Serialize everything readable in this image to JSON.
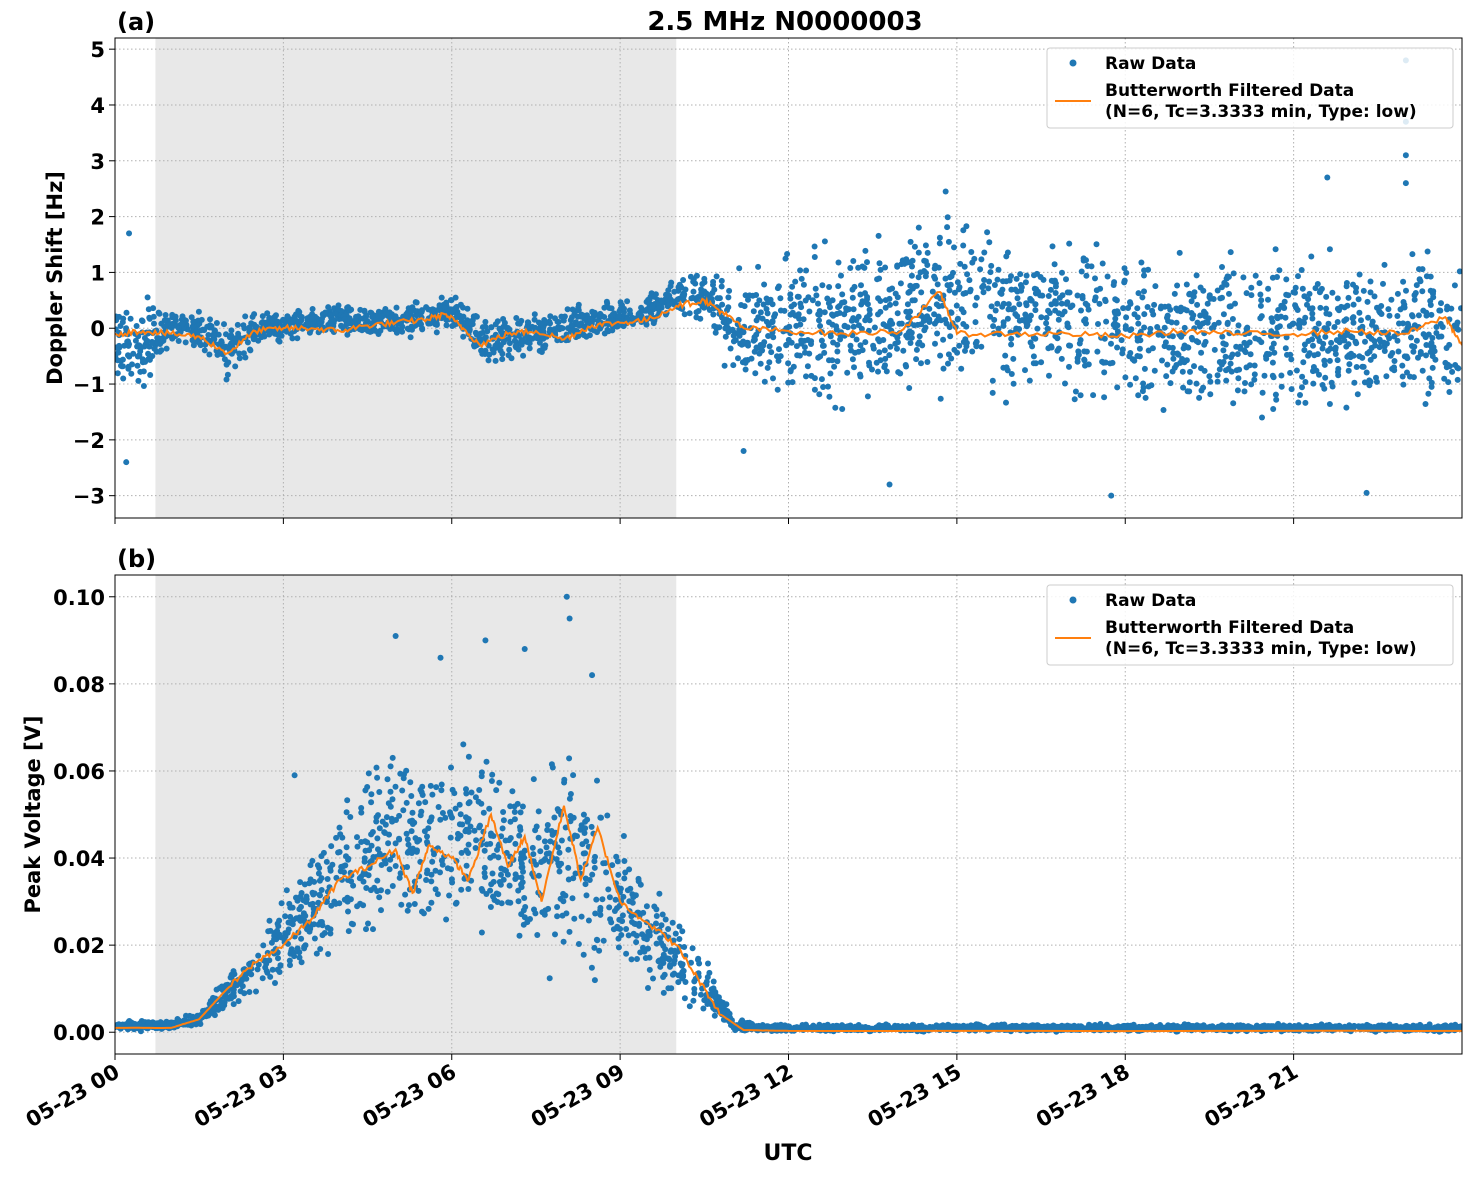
{
  "figure": {
    "title": "2.5 MHz N0000003",
    "xlabel": "UTC",
    "x_tick_labels": [
      "05-23 00",
      "05-23 03",
      "05-23 06",
      "05-23 09",
      "05-23 12",
      "05-23 15",
      "05-23 18",
      "05-23 21"
    ]
  },
  "colors": {
    "raw": "#1f77b4",
    "filtered": "#ff7f0e",
    "shade": "#e8e8e8",
    "grid": "#b0b0b0"
  },
  "chart_data": [
    {
      "type": "scatter",
      "panel_label": "(a)",
      "title": "2.5 MHz N0000003",
      "xlabel": "",
      "ylabel": "Doppler Shift [Hz]",
      "x_unit": "hours UTC on 05-23",
      "xlim": [
        0,
        24
      ],
      "ylim": [
        -3.4,
        5.2
      ],
      "y_ticks": [
        -3,
        -2,
        -1,
        0,
        1,
        2,
        3,
        4,
        5
      ],
      "y_tick_labels": [
        "−3",
        "−2",
        "−1",
        "0",
        "1",
        "2",
        "3",
        "4",
        "5"
      ],
      "grid": true,
      "legend_position": "top-right",
      "shaded_x_range": [
        0.72,
        10.0
      ],
      "series": [
        {
          "name": "Raw Data",
          "style": "points",
          "envelope": [
            {
              "x": 0.0,
              "lo": -1.2,
              "hi": 0.7
            },
            {
              "x": 0.5,
              "lo": -1.4,
              "hi": 0.8
            },
            {
              "x": 1.0,
              "lo": -0.5,
              "hi": 0.5
            },
            {
              "x": 1.5,
              "lo": -0.6,
              "hi": 0.5
            },
            {
              "x": 2.0,
              "lo": -1.1,
              "hi": 0.2
            },
            {
              "x": 2.5,
              "lo": -0.4,
              "hi": 0.4
            },
            {
              "x": 3.0,
              "lo": -0.3,
              "hi": 0.4
            },
            {
              "x": 4.0,
              "lo": -0.2,
              "hi": 0.5
            },
            {
              "x": 5.0,
              "lo": -0.3,
              "hi": 0.5
            },
            {
              "x": 6.0,
              "lo": -0.1,
              "hi": 0.7
            },
            {
              "x": 6.5,
              "lo": -0.8,
              "hi": 0.3
            },
            {
              "x": 7.5,
              "lo": -0.6,
              "hi": 0.4
            },
            {
              "x": 8.5,
              "lo": -0.3,
              "hi": 0.5
            },
            {
              "x": 9.5,
              "lo": -0.1,
              "hi": 0.7
            },
            {
              "x": 10.0,
              "lo": 0.1,
              "hi": 1.0
            },
            {
              "x": 10.5,
              "lo": 0.0,
              "hi": 1.2
            },
            {
              "x": 11.0,
              "lo": -1.2,
              "hi": 1.2
            },
            {
              "x": 12.0,
              "lo": -1.8,
              "hi": 1.6
            },
            {
              "x": 14.8,
              "lo": -1.5,
              "hi": 2.4
            },
            {
              "x": 18.0,
              "lo": -1.8,
              "hi": 1.8
            },
            {
              "x": 24.0,
              "lo": -1.9,
              "hi": 1.7
            }
          ],
          "outliers": [
            {
              "x": 0.25,
              "y": 1.7
            },
            {
              "x": 0.2,
              "y": -2.4
            },
            {
              "x": 11.2,
              "y": -2.2
            },
            {
              "x": 13.8,
              "y": -2.8
            },
            {
              "x": 14.8,
              "y": 2.45
            },
            {
              "x": 17.75,
              "y": -3.0
            },
            {
              "x": 21.6,
              "y": 2.7
            },
            {
              "x": 22.3,
              "y": -2.95
            },
            {
              "x": 23.0,
              "y": 4.8
            },
            {
              "x": 23.0,
              "y": 3.7
            },
            {
              "x": 23.0,
              "y": 3.1
            },
            {
              "x": 23.0,
              "y": 2.6
            }
          ]
        },
        {
          "name": "Butterworth Filtered Data\n(N=6, Tc=3.3333 min, Type: low)",
          "style": "line",
          "points": [
            {
              "x": 0.0,
              "y": -0.1
            },
            {
              "x": 0.5,
              "y": -0.05
            },
            {
              "x": 1.0,
              "y": -0.1
            },
            {
              "x": 1.5,
              "y": -0.15
            },
            {
              "x": 2.0,
              "y": -0.45
            },
            {
              "x": 2.5,
              "y": -0.05
            },
            {
              "x": 3.0,
              "y": 0.0
            },
            {
              "x": 3.5,
              "y": 0.0
            },
            {
              "x": 4.0,
              "y": -0.05
            },
            {
              "x": 4.5,
              "y": 0.05
            },
            {
              "x": 5.0,
              "y": 0.1
            },
            {
              "x": 5.5,
              "y": 0.15
            },
            {
              "x": 5.9,
              "y": 0.25
            },
            {
              "x": 6.2,
              "y": 0.0
            },
            {
              "x": 6.5,
              "y": -0.3
            },
            {
              "x": 7.0,
              "y": -0.1
            },
            {
              "x": 7.5,
              "y": -0.05
            },
            {
              "x": 8.0,
              "y": -0.2
            },
            {
              "x": 8.5,
              "y": 0.05
            },
            {
              "x": 9.0,
              "y": 0.1
            },
            {
              "x": 9.5,
              "y": 0.15
            },
            {
              "x": 10.0,
              "y": 0.4
            },
            {
              "x": 10.5,
              "y": 0.5
            },
            {
              "x": 10.8,
              "y": 0.3
            },
            {
              "x": 11.2,
              "y": 0.0
            },
            {
              "x": 12.0,
              "y": -0.05
            },
            {
              "x": 13.0,
              "y": -0.1
            },
            {
              "x": 14.0,
              "y": -0.05
            },
            {
              "x": 14.7,
              "y": 0.65
            },
            {
              "x": 15.0,
              "y": -0.1
            },
            {
              "x": 16.0,
              "y": -0.1
            },
            {
              "x": 17.0,
              "y": -0.1
            },
            {
              "x": 18.0,
              "y": -0.15
            },
            {
              "x": 19.0,
              "y": -0.05
            },
            {
              "x": 20.0,
              "y": -0.1
            },
            {
              "x": 21.0,
              "y": -0.1
            },
            {
              "x": 22.0,
              "y": -0.05
            },
            {
              "x": 23.0,
              "y": -0.1
            },
            {
              "x": 23.7,
              "y": 0.2
            },
            {
              "x": 24.0,
              "y": -0.3
            }
          ]
        }
      ]
    },
    {
      "type": "scatter",
      "panel_label": "(b)",
      "title": "",
      "xlabel": "UTC",
      "ylabel": "Peak Voltage [V]",
      "x_unit": "hours UTC on 05-23",
      "xlim": [
        0,
        24
      ],
      "ylim": [
        -0.005,
        0.105
      ],
      "y_ticks": [
        0.0,
        0.02,
        0.04,
        0.06,
        0.08,
        0.1
      ],
      "y_tick_labels": [
        "0.00",
        "0.02",
        "0.04",
        "0.06",
        "0.08",
        "0.10"
      ],
      "grid": true,
      "legend_position": "top-right",
      "shaded_x_range": [
        0.72,
        10.0
      ],
      "series": [
        {
          "name": "Raw Data",
          "style": "points",
          "envelope": [
            {
              "x": 0.0,
              "lo": 0.0,
              "hi": 0.003
            },
            {
              "x": 1.0,
              "lo": 0.0,
              "hi": 0.003
            },
            {
              "x": 1.5,
              "lo": 0.001,
              "hi": 0.005
            },
            {
              "x": 2.0,
              "lo": 0.003,
              "hi": 0.015
            },
            {
              "x": 2.5,
              "lo": 0.006,
              "hi": 0.025
            },
            {
              "x": 3.0,
              "lo": 0.008,
              "hi": 0.035
            },
            {
              "x": 3.5,
              "lo": 0.012,
              "hi": 0.045
            },
            {
              "x": 4.0,
              "lo": 0.015,
              "hi": 0.055
            },
            {
              "x": 4.5,
              "lo": 0.018,
              "hi": 0.065
            },
            {
              "x": 5.0,
              "lo": 0.018,
              "hi": 0.07
            },
            {
              "x": 6.0,
              "lo": 0.02,
              "hi": 0.07
            },
            {
              "x": 6.5,
              "lo": 0.018,
              "hi": 0.075
            },
            {
              "x": 7.0,
              "lo": 0.015,
              "hi": 0.07
            },
            {
              "x": 7.5,
              "lo": 0.012,
              "hi": 0.06
            },
            {
              "x": 8.0,
              "lo": 0.01,
              "hi": 0.075
            },
            {
              "x": 8.5,
              "lo": 0.01,
              "hi": 0.065
            },
            {
              "x": 9.0,
              "lo": 0.008,
              "hi": 0.05
            },
            {
              "x": 9.5,
              "lo": 0.006,
              "hi": 0.04
            },
            {
              "x": 10.0,
              "lo": 0.004,
              "hi": 0.03
            },
            {
              "x": 10.5,
              "lo": 0.002,
              "hi": 0.02
            },
            {
              "x": 11.0,
              "lo": 0.0,
              "hi": 0.004
            },
            {
              "x": 11.5,
              "lo": 0.0,
              "hi": 0.002
            },
            {
              "x": 24.0,
              "lo": 0.0,
              "hi": 0.002
            }
          ],
          "outliers": [
            {
              "x": 3.2,
              "y": 0.059
            },
            {
              "x": 5.0,
              "y": 0.091
            },
            {
              "x": 5.8,
              "y": 0.086
            },
            {
              "x": 6.6,
              "y": 0.09
            },
            {
              "x": 7.3,
              "y": 0.088
            },
            {
              "x": 8.05,
              "y": 0.1
            },
            {
              "x": 8.1,
              "y": 0.095
            },
            {
              "x": 8.5,
              "y": 0.082
            }
          ]
        },
        {
          "name": "Butterworth Filtered Data\n(N=6, Tc=3.3333 min, Type: low)",
          "style": "line",
          "points": [
            {
              "x": 0.0,
              "y": 0.001
            },
            {
              "x": 1.0,
              "y": 0.001
            },
            {
              "x": 1.5,
              "y": 0.003
            },
            {
              "x": 2.0,
              "y": 0.01
            },
            {
              "x": 2.5,
              "y": 0.016
            },
            {
              "x": 3.0,
              "y": 0.02
            },
            {
              "x": 3.5,
              "y": 0.026
            },
            {
              "x": 4.0,
              "y": 0.035
            },
            {
              "x": 4.5,
              "y": 0.038
            },
            {
              "x": 5.0,
              "y": 0.042
            },
            {
              "x": 5.3,
              "y": 0.032
            },
            {
              "x": 5.6,
              "y": 0.043
            },
            {
              "x": 6.0,
              "y": 0.04
            },
            {
              "x": 6.3,
              "y": 0.035
            },
            {
              "x": 6.7,
              "y": 0.05
            },
            {
              "x": 7.0,
              "y": 0.038
            },
            {
              "x": 7.3,
              "y": 0.045
            },
            {
              "x": 7.6,
              "y": 0.03
            },
            {
              "x": 8.0,
              "y": 0.052
            },
            {
              "x": 8.3,
              "y": 0.035
            },
            {
              "x": 8.6,
              "y": 0.047
            },
            {
              "x": 9.0,
              "y": 0.03
            },
            {
              "x": 9.5,
              "y": 0.025
            },
            {
              "x": 10.0,
              "y": 0.02
            },
            {
              "x": 10.4,
              "y": 0.012
            },
            {
              "x": 10.8,
              "y": 0.004
            },
            {
              "x": 11.2,
              "y": 0.0005
            },
            {
              "x": 12.0,
              "y": 0.0003
            },
            {
              "x": 24.0,
              "y": 0.0003
            }
          ]
        }
      ]
    }
  ]
}
